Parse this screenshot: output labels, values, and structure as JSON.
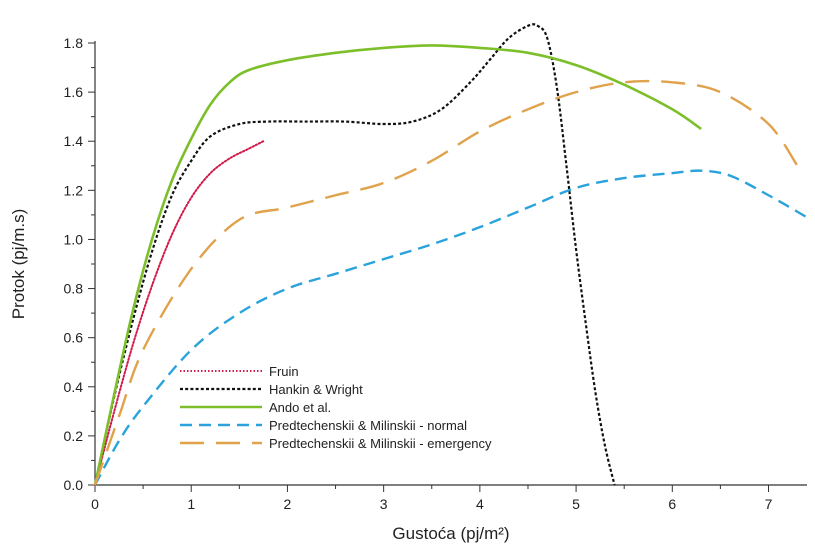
{
  "chart_data": {
    "type": "line",
    "title": "",
    "xlabel": "Gustoća (pj/m²)",
    "ylabel": "Protok (pj/m.s)",
    "xlim": [
      0,
      7.4
    ],
    "ylim": [
      0,
      1.8
    ],
    "xticks": [
      0,
      1,
      2,
      3,
      4,
      5,
      6,
      7
    ],
    "xtick_labels": [
      "0",
      "1",
      "2",
      "3",
      "4",
      "5",
      "6",
      "7"
    ],
    "yticks": [
      0,
      0.2,
      0.4,
      0.6,
      0.8,
      1.0,
      1.2,
      1.4,
      1.6,
      1.8
    ],
    "ytick_labels": [
      "0.0",
      "0.2",
      "0.4",
      "0.6",
      "0.8",
      "1.0",
      "1.2",
      "1.4",
      "1.6",
      "1.8"
    ],
    "grid": false,
    "legend_position": "bottom-left",
    "series": [
      {
        "name": "Fruin",
        "color": "#d11b4a",
        "dash": "dotted",
        "points": [
          [
            0,
            0
          ],
          [
            0.2,
            0.3
          ],
          [
            0.4,
            0.58
          ],
          [
            0.6,
            0.82
          ],
          [
            0.8,
            1.02
          ],
          [
            1.0,
            1.17
          ],
          [
            1.2,
            1.27
          ],
          [
            1.4,
            1.33
          ],
          [
            1.6,
            1.37
          ],
          [
            1.75,
            1.4
          ]
        ]
      },
      {
        "name": "Hankin & Wright",
        "color": "#111111",
        "dash": "short",
        "points": [
          [
            0,
            0
          ],
          [
            0.2,
            0.36
          ],
          [
            0.4,
            0.68
          ],
          [
            0.6,
            0.96
          ],
          [
            0.8,
            1.18
          ],
          [
            1.0,
            1.32
          ],
          [
            1.2,
            1.42
          ],
          [
            1.5,
            1.47
          ],
          [
            1.8,
            1.48
          ],
          [
            2.2,
            1.48
          ],
          [
            2.6,
            1.48
          ],
          [
            3.0,
            1.47
          ],
          [
            3.3,
            1.48
          ],
          [
            3.6,
            1.53
          ],
          [
            3.9,
            1.64
          ],
          [
            4.1,
            1.73
          ],
          [
            4.3,
            1.82
          ],
          [
            4.5,
            1.87
          ],
          [
            4.6,
            1.87
          ],
          [
            4.7,
            1.82
          ],
          [
            4.8,
            1.62
          ],
          [
            4.9,
            1.3
          ],
          [
            5.0,
            0.96
          ],
          [
            5.1,
            0.66
          ],
          [
            5.2,
            0.38
          ],
          [
            5.3,
            0.16
          ],
          [
            5.4,
            0.0
          ]
        ]
      },
      {
        "name": "Ando et al.",
        "color": "#7cbf2a",
        "dash": "solid",
        "points": [
          [
            0,
            0
          ],
          [
            0.2,
            0.37
          ],
          [
            0.4,
            0.72
          ],
          [
            0.6,
            1.01
          ],
          [
            0.8,
            1.24
          ],
          [
            1.0,
            1.41
          ],
          [
            1.2,
            1.55
          ],
          [
            1.4,
            1.64
          ],
          [
            1.6,
            1.69
          ],
          [
            2.0,
            1.73
          ],
          [
            2.5,
            1.76
          ],
          [
            3.0,
            1.78
          ],
          [
            3.5,
            1.79
          ],
          [
            4.0,
            1.78
          ],
          [
            4.5,
            1.76
          ],
          [
            5.0,
            1.71
          ],
          [
            5.5,
            1.63
          ],
          [
            6.0,
            1.53
          ],
          [
            6.3,
            1.45
          ]
        ]
      },
      {
        "name": "Predtechenskii & Milinskii - normal",
        "color": "#2aa3dc",
        "dash": "long",
        "points": [
          [
            0,
            0
          ],
          [
            0.25,
            0.18
          ],
          [
            0.5,
            0.32
          ],
          [
            1.0,
            0.55
          ],
          [
            1.5,
            0.7
          ],
          [
            2.0,
            0.8
          ],
          [
            2.5,
            0.86
          ],
          [
            3.0,
            0.92
          ],
          [
            3.5,
            0.98
          ],
          [
            4.0,
            1.05
          ],
          [
            4.5,
            1.13
          ],
          [
            5.0,
            1.21
          ],
          [
            5.5,
            1.25
          ],
          [
            6.0,
            1.27
          ],
          [
            6.3,
            1.28
          ],
          [
            6.6,
            1.26
          ],
          [
            7.0,
            1.18
          ],
          [
            7.4,
            1.09
          ]
        ]
      },
      {
        "name": "Predtechenskii & Milinskii - emergency",
        "color": "#e0a24b",
        "dash": "xlong",
        "points": [
          [
            0,
            0
          ],
          [
            0.25,
            0.28
          ],
          [
            0.5,
            0.55
          ],
          [
            1.0,
            0.88
          ],
          [
            1.5,
            1.08
          ],
          [
            2.0,
            1.13
          ],
          [
            2.5,
            1.18
          ],
          [
            3.0,
            1.23
          ],
          [
            3.5,
            1.32
          ],
          [
            4.0,
            1.44
          ],
          [
            4.5,
            1.53
          ],
          [
            5.0,
            1.6
          ],
          [
            5.5,
            1.64
          ],
          [
            6.0,
            1.64
          ],
          [
            6.5,
            1.6
          ],
          [
            7.0,
            1.47
          ],
          [
            7.3,
            1.3
          ]
        ]
      }
    ]
  }
}
